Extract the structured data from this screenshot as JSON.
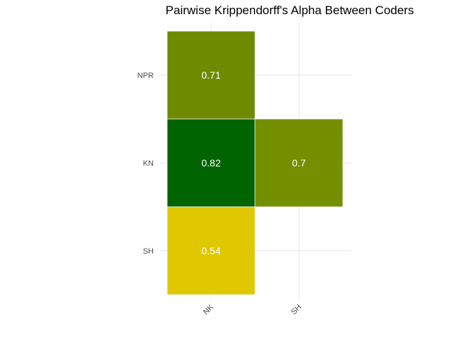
{
  "chart_data": {
    "type": "heatmap",
    "title": "Pairwise Krippendorff's Alpha Between Coders",
    "xlabel": "",
    "ylabel": "",
    "x_categories": [
      "NK",
      "SH"
    ],
    "y_categories": [
      "NPR",
      "KN",
      "SH"
    ],
    "cells": [
      {
        "x": "NK",
        "y": "NPR",
        "value": 0.71,
        "label": "0.71",
        "color": "#6e8b00"
      },
      {
        "x": "NK",
        "y": "KN",
        "value": 0.82,
        "label": "0.82",
        "color": "#006400"
      },
      {
        "x": "SH",
        "y": "KN",
        "value": 0.7,
        "label": "0.7",
        "color": "#748f00"
      },
      {
        "x": "NK",
        "y": "SH",
        "value": 0.54,
        "label": "0.54",
        "color": "#e0c800"
      }
    ],
    "grid": true,
    "legend": "none"
  }
}
